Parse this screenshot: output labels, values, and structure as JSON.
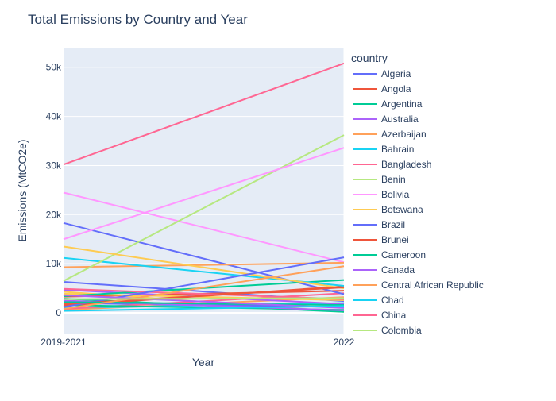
{
  "chart_data": {
    "type": "line",
    "title": "Total Emissions by Country and Year",
    "xlabel": "Year",
    "ylabel": "Emissions (MtCO2e)",
    "x": [
      "2019-2021",
      "2022"
    ],
    "ylim": [
      -4200,
      54000
    ],
    "yticks": [
      0,
      10000,
      20000,
      30000,
      40000,
      50000
    ],
    "ytick_labels": [
      "0",
      "10k",
      "20k",
      "30k",
      "40k",
      "50k"
    ],
    "grid": true,
    "legend_title": "country",
    "legend_position": "right",
    "series": [
      {
        "name": "Algeria",
        "color": "#636efa",
        "values": [
          18300,
          3800
        ]
      },
      {
        "name": "Angola",
        "color": "#ef553b",
        "values": [
          1500,
          5400
        ]
      },
      {
        "name": "Argentina",
        "color": "#00cc96",
        "values": [
          3400,
          6700
        ]
      },
      {
        "name": "Australia",
        "color": "#ab63fa",
        "values": [
          2500,
          500
        ]
      },
      {
        "name": "Azerbaijan",
        "color": "#ffa15a",
        "values": [
          9300,
          10200
        ]
      },
      {
        "name": "Bahrain",
        "color": "#19d3f3",
        "values": [
          11200,
          5500
        ]
      },
      {
        "name": "Bangladesh",
        "color": "#ff6692",
        "values": [
          4900,
          2800
        ]
      },
      {
        "name": "Benin",
        "color": "#b6e880",
        "values": [
          6500,
          36200
        ]
      },
      {
        "name": "Bolivia",
        "color": "#ff97ff",
        "values": [
          15000,
          33600
        ]
      },
      {
        "name": "Botswana",
        "color": "#fecb52",
        "values": [
          13500,
          5000
        ]
      },
      {
        "name": "Brazil",
        "color": "#636efa",
        "values": [
          1200,
          11300
        ]
      },
      {
        "name": "Brunei",
        "color": "#ef553b",
        "values": [
          1800,
          5200
        ]
      },
      {
        "name": "Cameroon",
        "color": "#00cc96",
        "values": [
          2200,
          1600
        ]
      },
      {
        "name": "Canada",
        "color": "#ab63fa",
        "values": [
          3600,
          1000
        ]
      },
      {
        "name": "Central African Republic",
        "color": "#ffa15a",
        "values": [
          800,
          9500
        ]
      },
      {
        "name": "Chad",
        "color": "#19d3f3",
        "values": [
          400,
          1400
        ]
      },
      {
        "name": "China",
        "color": "#ff6692",
        "values": [
          30200,
          50800
        ]
      },
      {
        "name": "Colombia",
        "color": "#b6e880",
        "values": [
          2800,
          3000
        ]
      }
    ],
    "extra_traces": [
      {
        "color": "#ff97ff",
        "values": [
          24500,
          10300
        ]
      },
      {
        "color": "#636efa",
        "values": [
          6300,
          2400
        ]
      },
      {
        "color": "#fecb52",
        "values": [
          4300,
          200
        ]
      },
      {
        "color": "#00cc96",
        "values": [
          2900,
          200
        ]
      },
      {
        "color": "#ffa15a",
        "values": [
          600,
          3200
        ]
      },
      {
        "color": "#19d3f3",
        "values": [
          1000,
          2000
        ]
      },
      {
        "color": "#ef553b",
        "values": [
          3300,
          4500
        ]
      },
      {
        "color": "#ab63fa",
        "values": [
          4700,
          1800
        ]
      },
      {
        "color": "#636efa",
        "values": [
          2000,
          1200
        ]
      },
      {
        "color": "#ff6692",
        "values": [
          800,
          4000
        ]
      },
      {
        "color": "#00cc96",
        "values": [
          1600,
          600
        ]
      },
      {
        "color": "#fecb52",
        "values": [
          3900,
          2600
        ]
      }
    ]
  }
}
